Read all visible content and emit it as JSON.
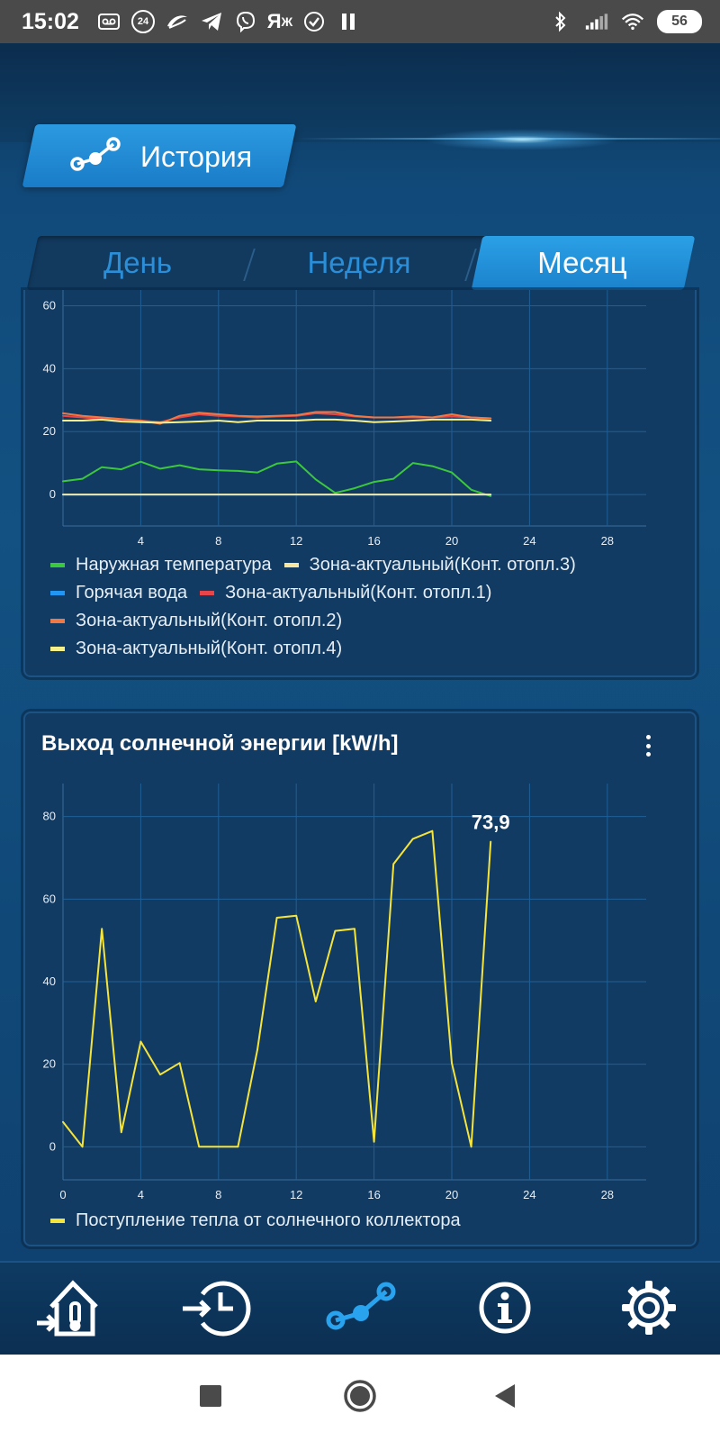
{
  "status_bar": {
    "time": "15:02",
    "notif_badge": "24",
    "battery": "56"
  },
  "header": {
    "title": "История",
    "icon": "history-graph-icon"
  },
  "tabs": [
    {
      "label": "День",
      "active": false
    },
    {
      "label": "Неделя",
      "active": false
    },
    {
      "label": "Месяц",
      "active": true
    }
  ],
  "colors": {
    "accent": "#2196e6",
    "green": "#3cc83c",
    "blue": "#2196f3",
    "red": "#e8454a",
    "orange": "#f07845",
    "cream": "#f7e6a0",
    "light_yellow": "#f5f08a",
    "yellow": "#f5e43a"
  },
  "chart_temp": {
    "legend": {
      "outdoor": "Наружная температура",
      "zone3": "Зона-актуальный(Конт. отопл.3)",
      "hotwater": "Горячая вода",
      "zone1": "Зона-актуальный(Конт. отопл.1)",
      "zone2": "Зона-актуальный(Конт. отопл.2)",
      "zone4": "Зона-актуальный(Конт. отопл.4)"
    }
  },
  "chart_solar": {
    "title": "Выход солнечной энергии [kW/h]",
    "value_label": "73,9",
    "legend": "Поступление тепла от солнечного коллектора"
  },
  "bottom_nav": [
    {
      "name": "nav-home-temperature",
      "icon": "house-thermometer-icon"
    },
    {
      "name": "nav-schedule",
      "icon": "clock-history-icon"
    },
    {
      "name": "nav-history",
      "icon": "graph-icon",
      "active": true
    },
    {
      "name": "nav-info",
      "icon": "info-icon"
    },
    {
      "name": "nav-settings",
      "icon": "gear-icon"
    }
  ],
  "chart_data": [
    {
      "type": "line",
      "xlim": [
        0,
        30
      ],
      "ylim": [
        -10,
        65
      ],
      "x_ticks": [
        4,
        8,
        12,
        16,
        20,
        24,
        28
      ],
      "y_ticks": [
        0,
        20,
        40,
        60
      ],
      "grid": true,
      "legend_position": "bottom",
      "series": [
        {
          "name": "Наружная температура",
          "color": "#3cc83c",
          "x": [
            0,
            1,
            2,
            3,
            4,
            5,
            6,
            7,
            8,
            9,
            10,
            11,
            12,
            13,
            14,
            15,
            16,
            17,
            18,
            19,
            20,
            21,
            22
          ],
          "values": [
            4.2,
            5,
            8.7,
            8,
            10.4,
            8.2,
            9.3,
            8,
            7.7,
            7.5,
            7,
            9.8,
            10.5,
            4.8,
            0.5,
            2,
            4,
            5,
            10,
            9,
            7,
            1.5,
            -0.5
          ]
        },
        {
          "name": "Горячая вода",
          "color": "#2196f3",
          "x": [
            0,
            22
          ],
          "values": [
            0,
            0
          ]
        },
        {
          "name": "Зона-актуальный(Конт. отопл.1)",
          "color": "#e8454a",
          "x": [
            0,
            1,
            2,
            3,
            4,
            5,
            6,
            7,
            8,
            9,
            10,
            11,
            12,
            13,
            14,
            15,
            16,
            17,
            18,
            19,
            20,
            21,
            22
          ],
          "values": [
            25,
            24.5,
            24,
            23.8,
            23.5,
            23,
            24.5,
            25.5,
            25,
            24.8,
            24.5,
            24.8,
            25,
            25.8,
            25.5,
            24.8,
            24.5,
            24.5,
            24.5,
            24.5,
            24.8,
            24.5,
            24.2
          ]
        },
        {
          "name": "Зона-актуальный(Конт. отопл.2)",
          "color": "#f07845",
          "x": [
            0,
            1,
            2,
            3,
            4,
            5,
            6,
            7,
            8,
            9,
            10,
            11,
            12,
            13,
            14,
            15,
            16,
            17,
            18,
            19,
            20,
            21,
            22
          ],
          "values": [
            25.8,
            25,
            24.5,
            24,
            23.5,
            22.5,
            25,
            26,
            25.5,
            25,
            24.8,
            25,
            25.2,
            26.2,
            26.2,
            25,
            24.5,
            24.5,
            24.8,
            24.5,
            25.5,
            24.5,
            24.2
          ]
        },
        {
          "name": "Зона-актуальный(Конт. отопл.3)",
          "color": "#f7e6a0",
          "x": [
            0,
            22
          ],
          "values": [
            0,
            0
          ]
        },
        {
          "name": "Зона-актуальный(Конт. отопл.4)",
          "color": "#f5f08a",
          "x": [
            0,
            1,
            2,
            3,
            4,
            5,
            6,
            7,
            8,
            9,
            10,
            11,
            12,
            13,
            14,
            15,
            16,
            17,
            18,
            19,
            20,
            21,
            22
          ],
          "values": [
            23.5,
            23.5,
            23.8,
            23.2,
            23,
            22.8,
            23,
            23.2,
            23.5,
            23,
            23.5,
            23.5,
            23.5,
            23.8,
            23.8,
            23.5,
            23,
            23.2,
            23.5,
            23.8,
            23.8,
            23.8,
            23.5
          ]
        }
      ]
    },
    {
      "type": "line",
      "title": "Выход солнечной энергии [kW/h]",
      "xlim": [
        0,
        30
      ],
      "ylim": [
        -8,
        88
      ],
      "x_ticks": [
        0,
        4,
        8,
        12,
        16,
        20,
        24,
        28
      ],
      "y_ticks": [
        0,
        20,
        40,
        60,
        80
      ],
      "grid": true,
      "legend_position": "bottom",
      "series": [
        {
          "name": "Поступление тепла от солнечного коллектора",
          "color": "#f5e43a",
          "x": [
            0,
            1,
            2,
            3,
            4,
            5,
            6,
            7,
            8,
            9,
            10,
            11,
            12,
            13,
            14,
            15,
            16,
            17,
            18,
            19,
            20,
            21,
            22
          ],
          "values": [
            6,
            0,
            52.8,
            3.5,
            25.5,
            17.5,
            20.3,
            0,
            0,
            0,
            23.5,
            55.5,
            56,
            35.2,
            52.3,
            52.8,
            1.2,
            68.5,
            74.6,
            76.5,
            20.3,
            0,
            73.9
          ]
        }
      ]
    }
  ]
}
